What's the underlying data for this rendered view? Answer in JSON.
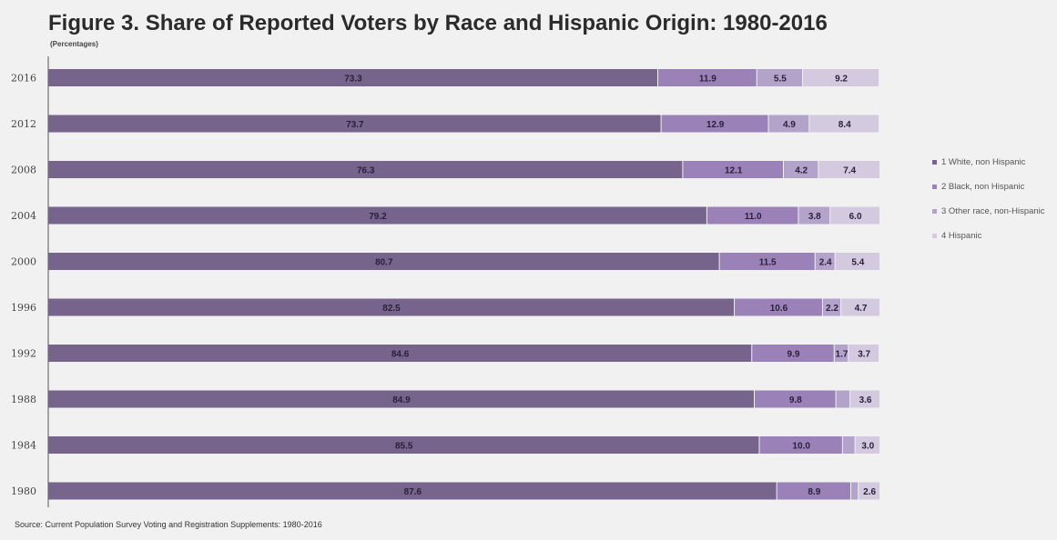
{
  "chart_data": {
    "type": "bar",
    "orientation": "horizontal",
    "stacked": true,
    "title": "Figure 3. Share of Reported Voters by Race and Hispanic Origin: 1980-2016",
    "subtitle": "(Percentages)",
    "categories": [
      "2016",
      "2012",
      "2008",
      "2004",
      "2000",
      "1996",
      "1992",
      "1988",
      "1984",
      "1980"
    ],
    "series": [
      {
        "name": "1 White, non Hispanic",
        "color": "#76648c",
        "values": [
          73.3,
          73.7,
          76.3,
          79.2,
          80.7,
          82.5,
          84.6,
          84.9,
          85.5,
          87.6
        ],
        "labels": [
          "73.3",
          "73.7",
          "76.3",
          "79.2",
          "80.7",
          "82.5",
          "84.6",
          "84.9",
          "85.5",
          "87.6"
        ]
      },
      {
        "name": "2 Black, non Hispanic",
        "color": "#9a82b8",
        "values": [
          11.9,
          12.9,
          12.1,
          11.0,
          11.5,
          10.6,
          9.9,
          9.8,
          10.0,
          8.9
        ],
        "labels": [
          "11.9",
          "12.9",
          "12.1",
          "11.0",
          "11.5",
          "10.6",
          "9.9",
          "9.8",
          "10.0",
          "8.9"
        ]
      },
      {
        "name": "3 Other race, non-Hispanic",
        "color": "#b3a3cb",
        "values": [
          5.5,
          4.9,
          4.2,
          3.8,
          2.4,
          2.2,
          1.7,
          1.7,
          1.5,
          0.9
        ],
        "labels": [
          "5.5",
          "4.9",
          "4.2",
          "3.8",
          "2.4",
          "2.2",
          "1.7",
          "",
          "",
          ""
        ]
      },
      {
        "name": "4 Hispanic",
        "color": "#d3cadf",
        "values": [
          9.2,
          8.4,
          7.4,
          6.0,
          5.4,
          4.7,
          3.7,
          3.6,
          3.0,
          2.6
        ],
        "labels": [
          "9.2",
          "8.4",
          "7.4",
          "6.0",
          "5.4",
          "4.7",
          "3.7",
          "3.6",
          "3.0",
          "2.6"
        ]
      }
    ],
    "xlim": [
      0,
      100
    ],
    "legend_position": "right",
    "grid": false
  },
  "source": "Source: Current Population Survey Voting and Registration Supplements: 1980-2016"
}
